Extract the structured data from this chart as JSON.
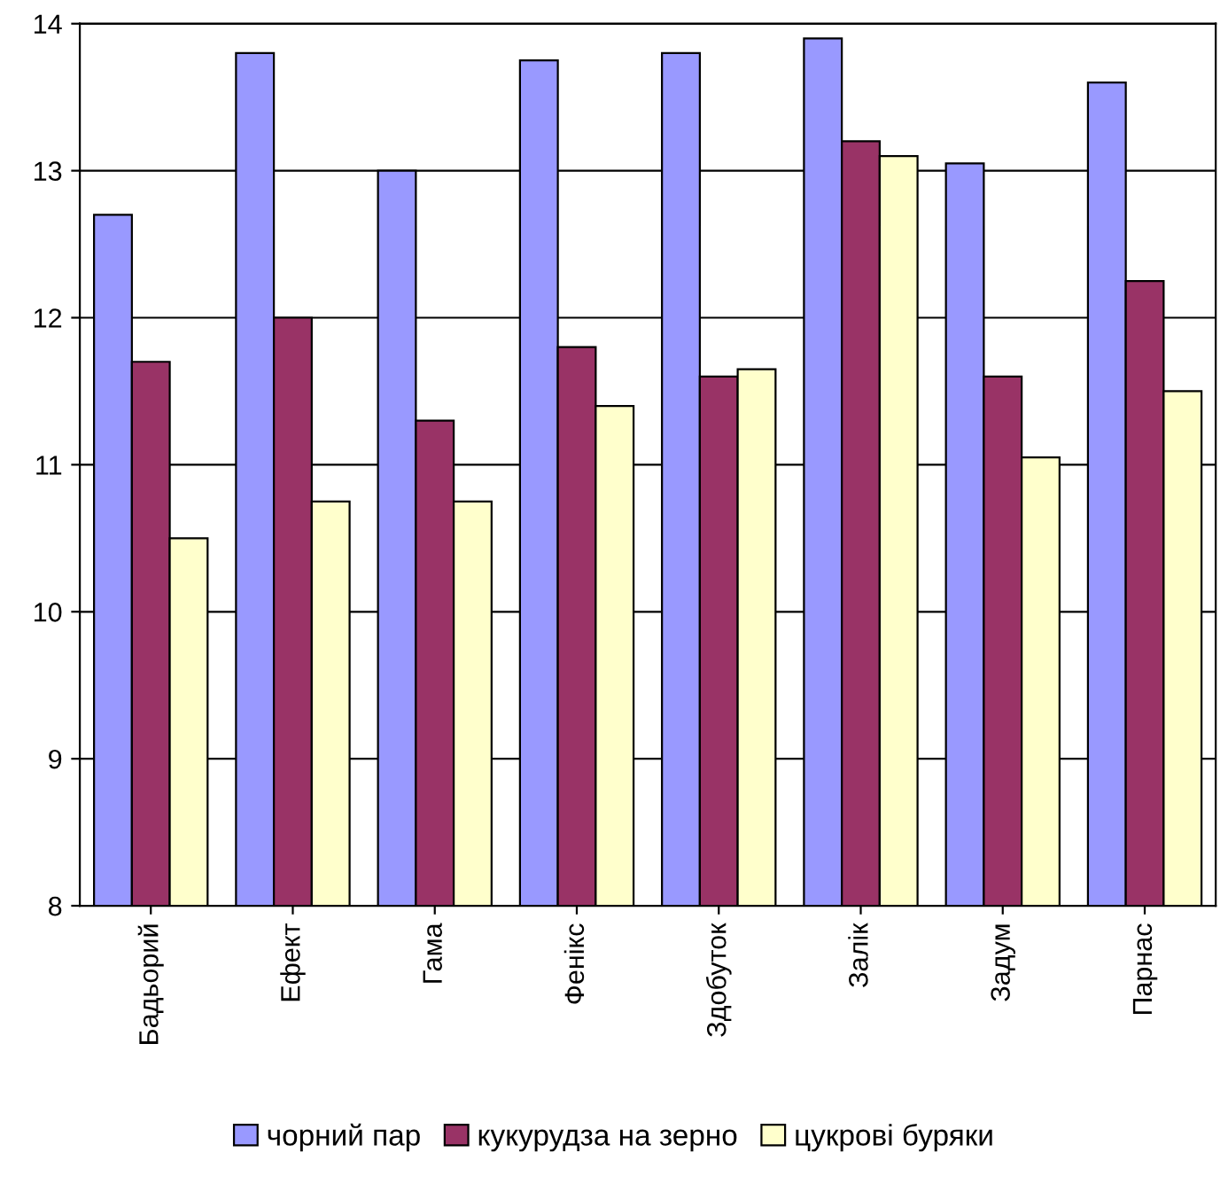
{
  "chart_data": {
    "type": "bar",
    "categories": [
      "Бадьорий",
      "Ефект",
      "Гама",
      "Фенікс",
      "Здобуток",
      "Залік",
      "Задум",
      "Парнас"
    ],
    "series": [
      {
        "name": "чорний пар",
        "color": "#9999ff",
        "values": [
          12.7,
          13.8,
          13.0,
          13.75,
          13.8,
          13.9,
          13.05,
          13.6
        ]
      },
      {
        "name": "кукурудза на зерно",
        "color": "#993366",
        "values": [
          11.7,
          12.0,
          11.3,
          11.8,
          11.6,
          13.2,
          11.6,
          12.25
        ]
      },
      {
        "name": "цукрові буряки",
        "color": "#ffffcc",
        "values": [
          10.5,
          10.75,
          10.75,
          11.4,
          11.65,
          13.1,
          11.05,
          11.5
        ]
      }
    ],
    "ylim": [
      8,
      14
    ],
    "yticks": [
      8,
      9,
      10,
      11,
      12,
      13,
      14
    ],
    "grid": "y",
    "legend": "bottom"
  }
}
